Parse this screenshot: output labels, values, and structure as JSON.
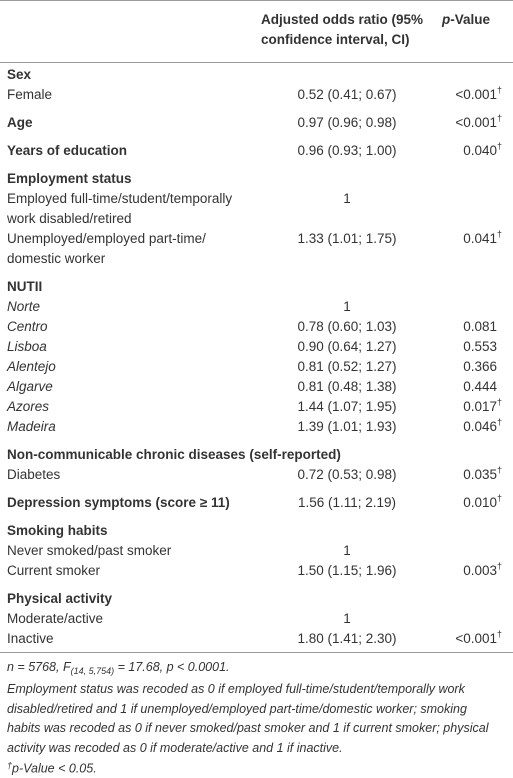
{
  "table": {
    "header": {
      "or": [
        "Adjusted odds ratio (95%",
        "confidence interval, CI)"
      ],
      "p": {
        "italic": "p",
        "text": "-Value"
      }
    },
    "rows": [
      {
        "kind": "section",
        "label": [
          "Sex"
        ]
      },
      {
        "kind": "item",
        "label": [
          "Female"
        ],
        "or": "0.52 (0.41; 0.67)",
        "p": "<0.001",
        "mark": "†"
      },
      {
        "kind": "section",
        "label": [
          "Age"
        ],
        "or": "0.97 (0.96; 0.98)",
        "p": "<0.001",
        "mark": "†"
      },
      {
        "kind": "section",
        "label": [
          "Years of education"
        ],
        "or": "0.96 (0.93; 1.00)",
        "p": "0.040",
        "mark": "†"
      },
      {
        "kind": "section",
        "label": [
          "Employment status"
        ]
      },
      {
        "kind": "item",
        "label": [
          "Employed full-time/student/temporally",
          "work disabled/retired"
        ],
        "or": "1"
      },
      {
        "kind": "item",
        "label": [
          "Unemployed/employed part-time/",
          "domestic worker"
        ],
        "or": "1.33 (1.01; 1.75)",
        "p": "0.041",
        "mark": "†"
      },
      {
        "kind": "section",
        "label": [
          "NUTII"
        ]
      },
      {
        "kind": "italic",
        "label": [
          "Norte"
        ],
        "or": "1"
      },
      {
        "kind": "italic",
        "label": [
          "Centro"
        ],
        "or": "0.78 (0.60; 1.03)",
        "p": "0.081"
      },
      {
        "kind": "italic",
        "label": [
          "Lisboa"
        ],
        "or": "0.90 (0.64; 1.27)",
        "p": "0.553"
      },
      {
        "kind": "italic",
        "label": [
          "Alentejo"
        ],
        "or": "0.81 (0.52; 1.27)",
        "p": "0.366"
      },
      {
        "kind": "italic",
        "label": [
          "Algarve"
        ],
        "or": "0.81 (0.48; 1.38)",
        "p": "0.444"
      },
      {
        "kind": "italic",
        "label": [
          "Azores"
        ],
        "or": "1.44 (1.07; 1.95)",
        "p": "0.017",
        "mark": "†"
      },
      {
        "kind": "italic",
        "label": [
          "Madeira"
        ],
        "or": "1.39 (1.01; 1.93)",
        "p": "0.046",
        "mark": "†"
      },
      {
        "kind": "section",
        "label": [
          "Non-communicable chronic diseases (self-reported)"
        ]
      },
      {
        "kind": "item",
        "label": [
          "Diabetes"
        ],
        "or": "0.72 (0.53; 0.98)",
        "p": "0.035",
        "mark": "†"
      },
      {
        "kind": "section",
        "label": [
          "Depression symptoms (score ≥ 11)"
        ],
        "or": "1.56 (1.11; 2.19)",
        "p": "0.010",
        "mark": "†"
      },
      {
        "kind": "section",
        "label": [
          "Smoking habits"
        ]
      },
      {
        "kind": "item",
        "label": [
          "Never smoked/past smoker"
        ],
        "or": "1"
      },
      {
        "kind": "item",
        "label": [
          "Current smoker"
        ],
        "or": "1.50 (1.15; 1.96)",
        "p": "0.003",
        "mark": "†"
      },
      {
        "kind": "section",
        "label": [
          "Physical activity"
        ]
      },
      {
        "kind": "item",
        "label": [
          "Moderate/active"
        ],
        "or": "1"
      },
      {
        "kind": "item",
        "label": [
          "Inactive"
        ],
        "or": "1.80 (1.41; 2.30)",
        "p": "<0.001",
        "mark": "†"
      }
    ],
    "footnotes": {
      "stats": {
        "before": "n = 5768, F",
        "sub": "(14, 5,754)",
        "after": " = 17.68, p < 0.0001."
      },
      "coding": [
        "Employment status was recoded as 0 if employed full-time/student/temporally work",
        "disabled/retired and 1 if unemployed/employed part-time/domestic worker; smoking",
        "habits was recoded as 0 if never smoked/past smoker and 1 if current smoker; physical",
        "activity was recoded as 0 if moderate/active and 1 if inactive."
      ],
      "significance": {
        "mark": "†",
        "text": "p-Value < 0.05."
      }
    }
  }
}
